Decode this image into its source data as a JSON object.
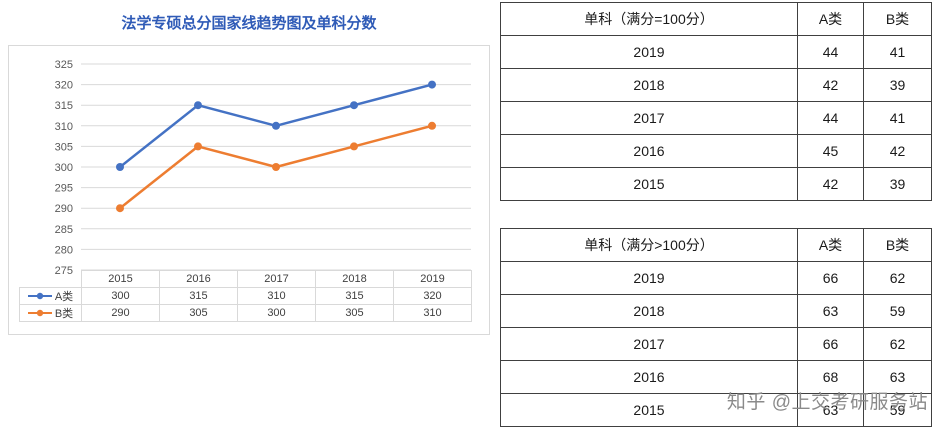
{
  "title": "法学专硕总分国家线趋势图及单科分数",
  "colors": {
    "title": "#2F5BB7",
    "grid": "#d9d9d9",
    "axis_text": "#595959",
    "series_a": "#4472C4",
    "series_b": "#ED7D31",
    "table_border": "#404040"
  },
  "chart_data": {
    "type": "line",
    "title": "法学专硕总分国家线趋势图及单科分数",
    "categories": [
      "2015",
      "2016",
      "2017",
      "2018",
      "2019"
    ],
    "series": [
      {
        "name": "A类",
        "values": [
          300,
          315,
          310,
          315,
          320
        ],
        "color": "#4472C4"
      },
      {
        "name": "B类",
        "values": [
          290,
          305,
          300,
          305,
          310
        ],
        "color": "#ED7D31"
      }
    ],
    "ylim": [
      275,
      325
    ],
    "ytick_step": 5,
    "grid": "horizontal",
    "legend_position": "data-table-left",
    "xlabel": "",
    "ylabel": ""
  },
  "tables": [
    {
      "header": [
        "单科（满分=100分）",
        "A类",
        "B类"
      ],
      "rows": [
        [
          "2019",
          "44",
          "41"
        ],
        [
          "2018",
          "42",
          "39"
        ],
        [
          "2017",
          "44",
          "41"
        ],
        [
          "2016",
          "45",
          "42"
        ],
        [
          "2015",
          "42",
          "39"
        ]
      ]
    },
    {
      "header": [
        "单科（满分>100分）",
        "A类",
        "B类"
      ],
      "rows": [
        [
          "2019",
          "66",
          "62"
        ],
        [
          "2018",
          "63",
          "59"
        ],
        [
          "2017",
          "66",
          "62"
        ],
        [
          "2016",
          "68",
          "63"
        ],
        [
          "2015",
          "63",
          "59"
        ]
      ]
    }
  ],
  "watermark": "知乎 @上交考研服务站"
}
